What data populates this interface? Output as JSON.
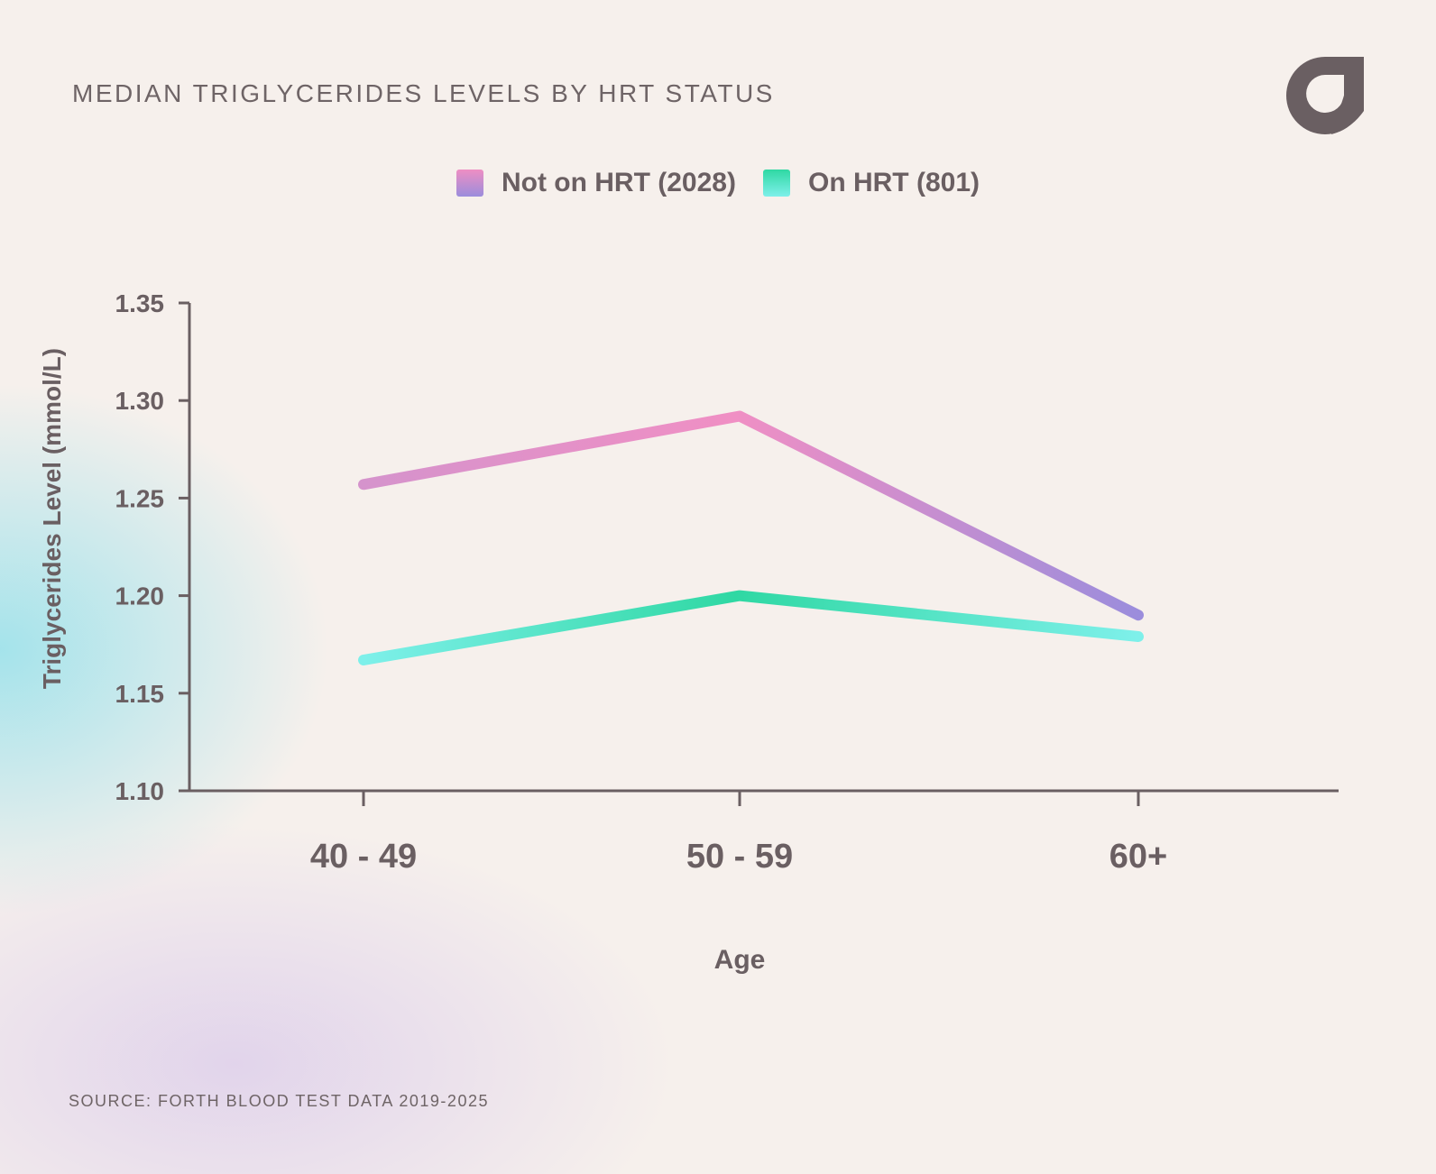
{
  "title": "MEDIAN TRIGLYCERIDES LEVELS BY HRT STATUS",
  "source": "SOURCE: FORTH BLOOD TEST DATA 2019-2025",
  "logo_icon": "forth-logo-icon",
  "colors": {
    "text": "#6a5f62",
    "axis": "#6a5f62",
    "not_on_hrt_start": "#d593cc",
    "not_on_hrt_mid": "#f08fc4",
    "not_on_hrt_end": "#9b8ddc",
    "on_hrt_start": "#7ef0ea",
    "on_hrt_mid": "#2fd8a3",
    "on_hrt_end": "#7ef0ea"
  },
  "chart_data": {
    "type": "line",
    "title": "MEDIAN TRIGLYCERIDES LEVELS BY HRT STATUS",
    "xlabel": "Age",
    "ylabel": "Triglycerides Level (mmol/L)",
    "categories": [
      "40 - 49",
      "50 - 59",
      "60+"
    ],
    "ylim": [
      1.1,
      1.35
    ],
    "yticks": [
      "1.10",
      "1.15",
      "1.20",
      "1.25",
      "1.30",
      "1.35"
    ],
    "grid": false,
    "legend_position": "top-center",
    "series": [
      {
        "name": "Not on HRT (2028)",
        "values": [
          1.257,
          1.292,
          1.19
        ]
      },
      {
        "name": "On HRT (801)",
        "values": [
          1.167,
          1.2,
          1.179
        ]
      }
    ]
  }
}
